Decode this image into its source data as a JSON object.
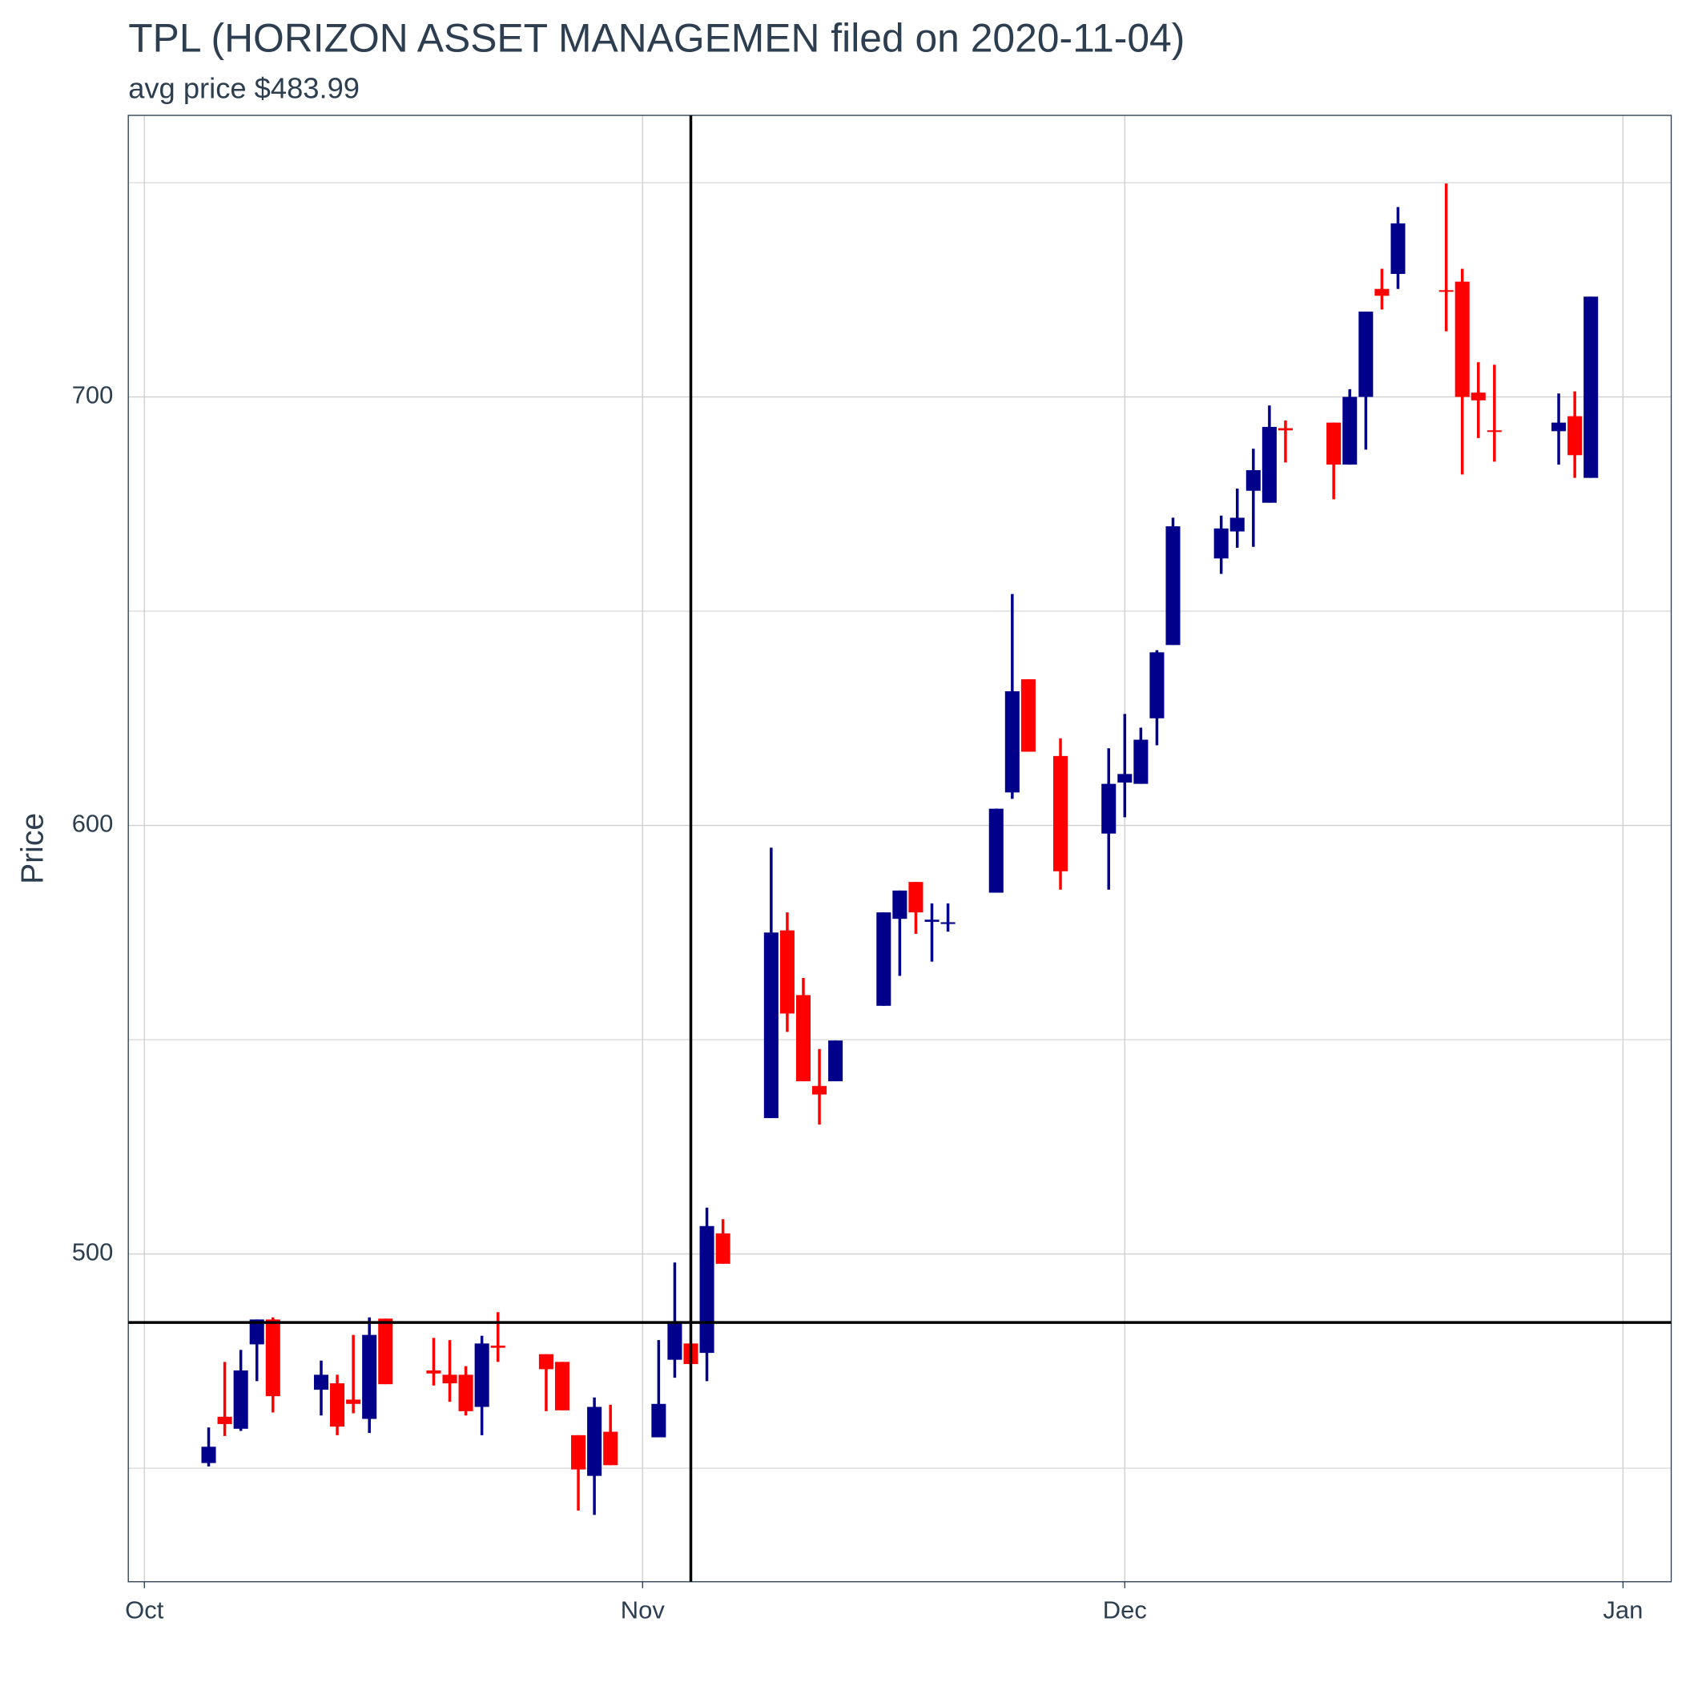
{
  "chart_data": {
    "type": "candlestick",
    "title": "TPL (HORIZON ASSET MANAGEMEN filed on 2020-11-04)",
    "subtitle": "avg price $483.99",
    "y_label": "Price",
    "x": [
      "2020-10-05",
      "2020-10-06",
      "2020-10-07",
      "2020-10-08",
      "2020-10-09",
      "2020-10-12",
      "2020-10-13",
      "2020-10-14",
      "2020-10-15",
      "2020-10-16",
      "2020-10-19",
      "2020-10-20",
      "2020-10-21",
      "2020-10-22",
      "2020-10-23",
      "2020-10-26",
      "2020-10-27",
      "2020-10-28",
      "2020-10-29",
      "2020-10-30",
      "2020-11-02",
      "2020-11-03",
      "2020-11-04",
      "2020-11-05",
      "2020-11-06",
      "2020-11-09",
      "2020-11-10",
      "2020-11-11",
      "2020-11-12",
      "2020-11-13",
      "2020-11-16",
      "2020-11-17",
      "2020-11-18",
      "2020-11-19",
      "2020-11-20",
      "2020-11-23",
      "2020-11-24",
      "2020-11-25",
      "2020-11-27",
      "2020-11-30",
      "2020-12-01",
      "2020-12-02",
      "2020-12-03",
      "2020-12-04",
      "2020-12-07",
      "2020-12-08",
      "2020-12-09",
      "2020-12-10",
      "2020-12-11",
      "2020-12-14",
      "2020-12-15",
      "2020-12-16",
      "2020-12-17",
      "2020-12-18",
      "2020-12-21",
      "2020-12-22",
      "2020-12-23",
      "2020-12-24",
      "2020-12-28",
      "2020-12-29",
      "2020-12-30"
    ],
    "open": [
      451.2,
      462.0,
      459.2,
      478.9,
      484.7,
      468.3,
      469.8,
      466.0,
      461.5,
      484.9,
      472.8,
      471.8,
      471.8,
      464.3,
      478.6,
      476.6,
      474.8,
      457.7,
      448.2,
      458.5,
      457.2,
      475.3,
      479.1,
      476.9,
      504.8,
      531.7,
      575.5,
      560.4,
      539.2,
      540.3,
      557.9,
      578.2,
      586.8,
      577.5,
      577.0,
      584.3,
      607.7,
      634.1,
      616.2,
      598.1,
      610.0,
      609.7,
      625.0,
      642.1,
      662.3,
      668.6,
      678.1,
      675.3,
      692.7,
      694.0,
      684.2,
      700.0,
      725.2,
      728.7,
      724.9,
      726.9,
      701.0,
      692.2,
      692.0,
      695.5,
      681.1
    ],
    "high": [
      459.5,
      474.8,
      477.6,
      484.7,
      485.2,
      475.1,
      471.8,
      481.1,
      485.2,
      484.9,
      480.4,
      479.9,
      473.8,
      480.9,
      486.4,
      476.6,
      474.8,
      457.7,
      466.5,
      464.8,
      479.9,
      498.0,
      479.1,
      510.8,
      508.1,
      594.8,
      579.7,
      564.4,
      547.8,
      549.8,
      579.7,
      584.8,
      586.8,
      581.8,
      581.8,
      603.9,
      654.0,
      634.1,
      620.3,
      618.0,
      626.0,
      622.8,
      640.9,
      671.8,
      672.3,
      678.6,
      687.9,
      698.0,
      694.5,
      694.0,
      701.8,
      719.9,
      729.9,
      744.3,
      749.8,
      729.9,
      708.1,
      707.5,
      700.8,
      701.3,
      723.4
    ],
    "low": [
      450.4,
      457.5,
      458.7,
      470.3,
      463.0,
      462.3,
      457.7,
      462.8,
      458.2,
      469.6,
      469.3,
      465.5,
      462.3,
      457.7,
      474.8,
      463.3,
      463.5,
      440.1,
      439.1,
      450.7,
      457.2,
      471.1,
      474.3,
      470.3,
      497.7,
      531.7,
      551.8,
      540.3,
      530.2,
      540.3,
      557.9,
      564.9,
      574.7,
      568.2,
      575.2,
      584.3,
      606.2,
      617.2,
      585.0,
      585.0,
      601.9,
      609.7,
      618.7,
      642.1,
      658.7,
      664.8,
      665.0,
      675.3,
      684.7,
      676.1,
      684.2,
      687.7,
      720.4,
      725.2,
      715.3,
      681.9,
      690.4,
      684.9,
      684.2,
      681.1,
      681.1
    ],
    "close": [
      455.0,
      460.3,
      472.8,
      484.7,
      466.8,
      471.8,
      459.7,
      465.0,
      481.1,
      469.6,
      472.1,
      469.8,
      463.3,
      479.1,
      478.1,
      473.1,
      463.5,
      449.7,
      464.3,
      450.7,
      465.0,
      484.2,
      474.3,
      506.5,
      497.7,
      575.0,
      556.1,
      540.3,
      537.2,
      549.8,
      579.7,
      584.8,
      579.7,
      578.0,
      577.4,
      603.9,
      631.3,
      617.2,
      589.3,
      609.7,
      612.0,
      620.0,
      640.4,
      669.8,
      669.3,
      671.8,
      682.9,
      693.0,
      692.2,
      684.2,
      700.0,
      719.9,
      723.6,
      740.5,
      724.7,
      700.0,
      699.2,
      692.0,
      694.0,
      686.4,
      723.4
    ],
    "up_color": "#00008b",
    "down_color": "#ff0000",
    "hline": 483.99,
    "vline": "2020-11-04",
    "xlim": [
      "2020-09-30",
      "2021-01-04"
    ],
    "xticks": [
      {
        "value": "2020-10-01",
        "label": "Oct"
      },
      {
        "value": "2020-11-01",
        "label": "Nov"
      },
      {
        "value": "2020-12-01",
        "label": "Dec"
      },
      {
        "value": "2021-01-01",
        "label": "Jan"
      }
    ],
    "ylim": [
      423.5,
      765.7
    ],
    "yticks": [
      500,
      600,
      700
    ],
    "minor_yticks": [
      450,
      550,
      650,
      750
    ],
    "grid": true
  }
}
